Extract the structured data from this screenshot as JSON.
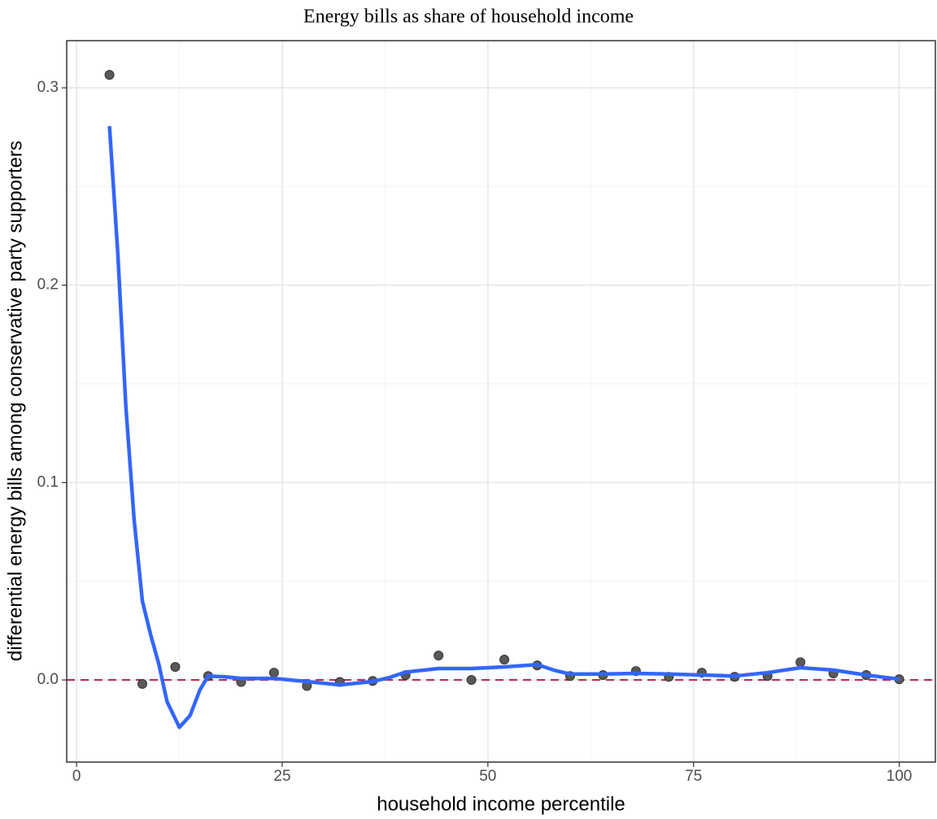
{
  "chart_data": {
    "type": "scatter",
    "title": "Energy bills as share of household income",
    "x_label": "household income percentile",
    "y_label": "differential energy bills among conservative party supporters",
    "points": {
      "color": "#595959",
      "x": [
        4,
        8,
        12,
        16,
        20,
        24,
        28,
        32,
        36,
        40,
        44,
        48,
        52,
        56,
        60,
        64,
        68,
        72,
        76,
        80,
        84,
        88,
        92,
        96,
        100
      ],
      "values": [
        0.3066,
        -0.002,
        0.0066,
        0.002,
        -0.001,
        0.0037,
        -0.003,
        -0.001,
        -0.0005,
        0.0025,
        0.0124,
        0.0,
        0.0103,
        0.0074,
        0.002,
        0.0025,
        0.0045,
        0.0016,
        0.0037,
        0.0016,
        0.002,
        0.009,
        0.0033,
        0.0025,
        0.0004
      ]
    },
    "smooth": {
      "color": "#3366ff",
      "x": [
        4,
        5,
        6,
        7,
        8,
        9,
        10,
        11,
        12.5,
        13.8,
        15,
        16,
        18,
        20,
        24,
        28,
        32,
        36,
        38,
        40,
        44,
        48,
        52,
        56,
        58,
        60,
        64,
        68,
        72,
        76,
        80,
        84,
        88,
        92,
        96,
        100
      ],
      "values": [
        0.2806,
        0.217,
        0.138,
        0.081,
        0.04,
        0.023,
        0.008,
        -0.011,
        -0.024,
        -0.018,
        -0.005,
        0.002,
        0.0016,
        0.0008,
        0.0008,
        -0.0008,
        -0.0025,
        -0.0008,
        0.0012,
        0.004,
        0.0058,
        0.0058,
        0.0066,
        0.0078,
        0.005,
        0.003,
        0.003,
        0.0033,
        0.003,
        0.0025,
        0.002,
        0.0037,
        0.0062,
        0.005,
        0.0025,
        0.0004
      ]
    },
    "hline": {
      "value": 0,
      "color": "#c0264f"
    },
    "xlim": [
      -1.2,
      104.4
    ],
    "ylim": [
      -0.0416,
      0.3239
    ],
    "xticks": [
      0,
      25,
      50,
      75,
      100
    ],
    "yticks": [
      {
        "value": 0,
        "label": "0.0"
      },
      0.1,
      0.2,
      0.3
    ],
    "grid": true
  }
}
